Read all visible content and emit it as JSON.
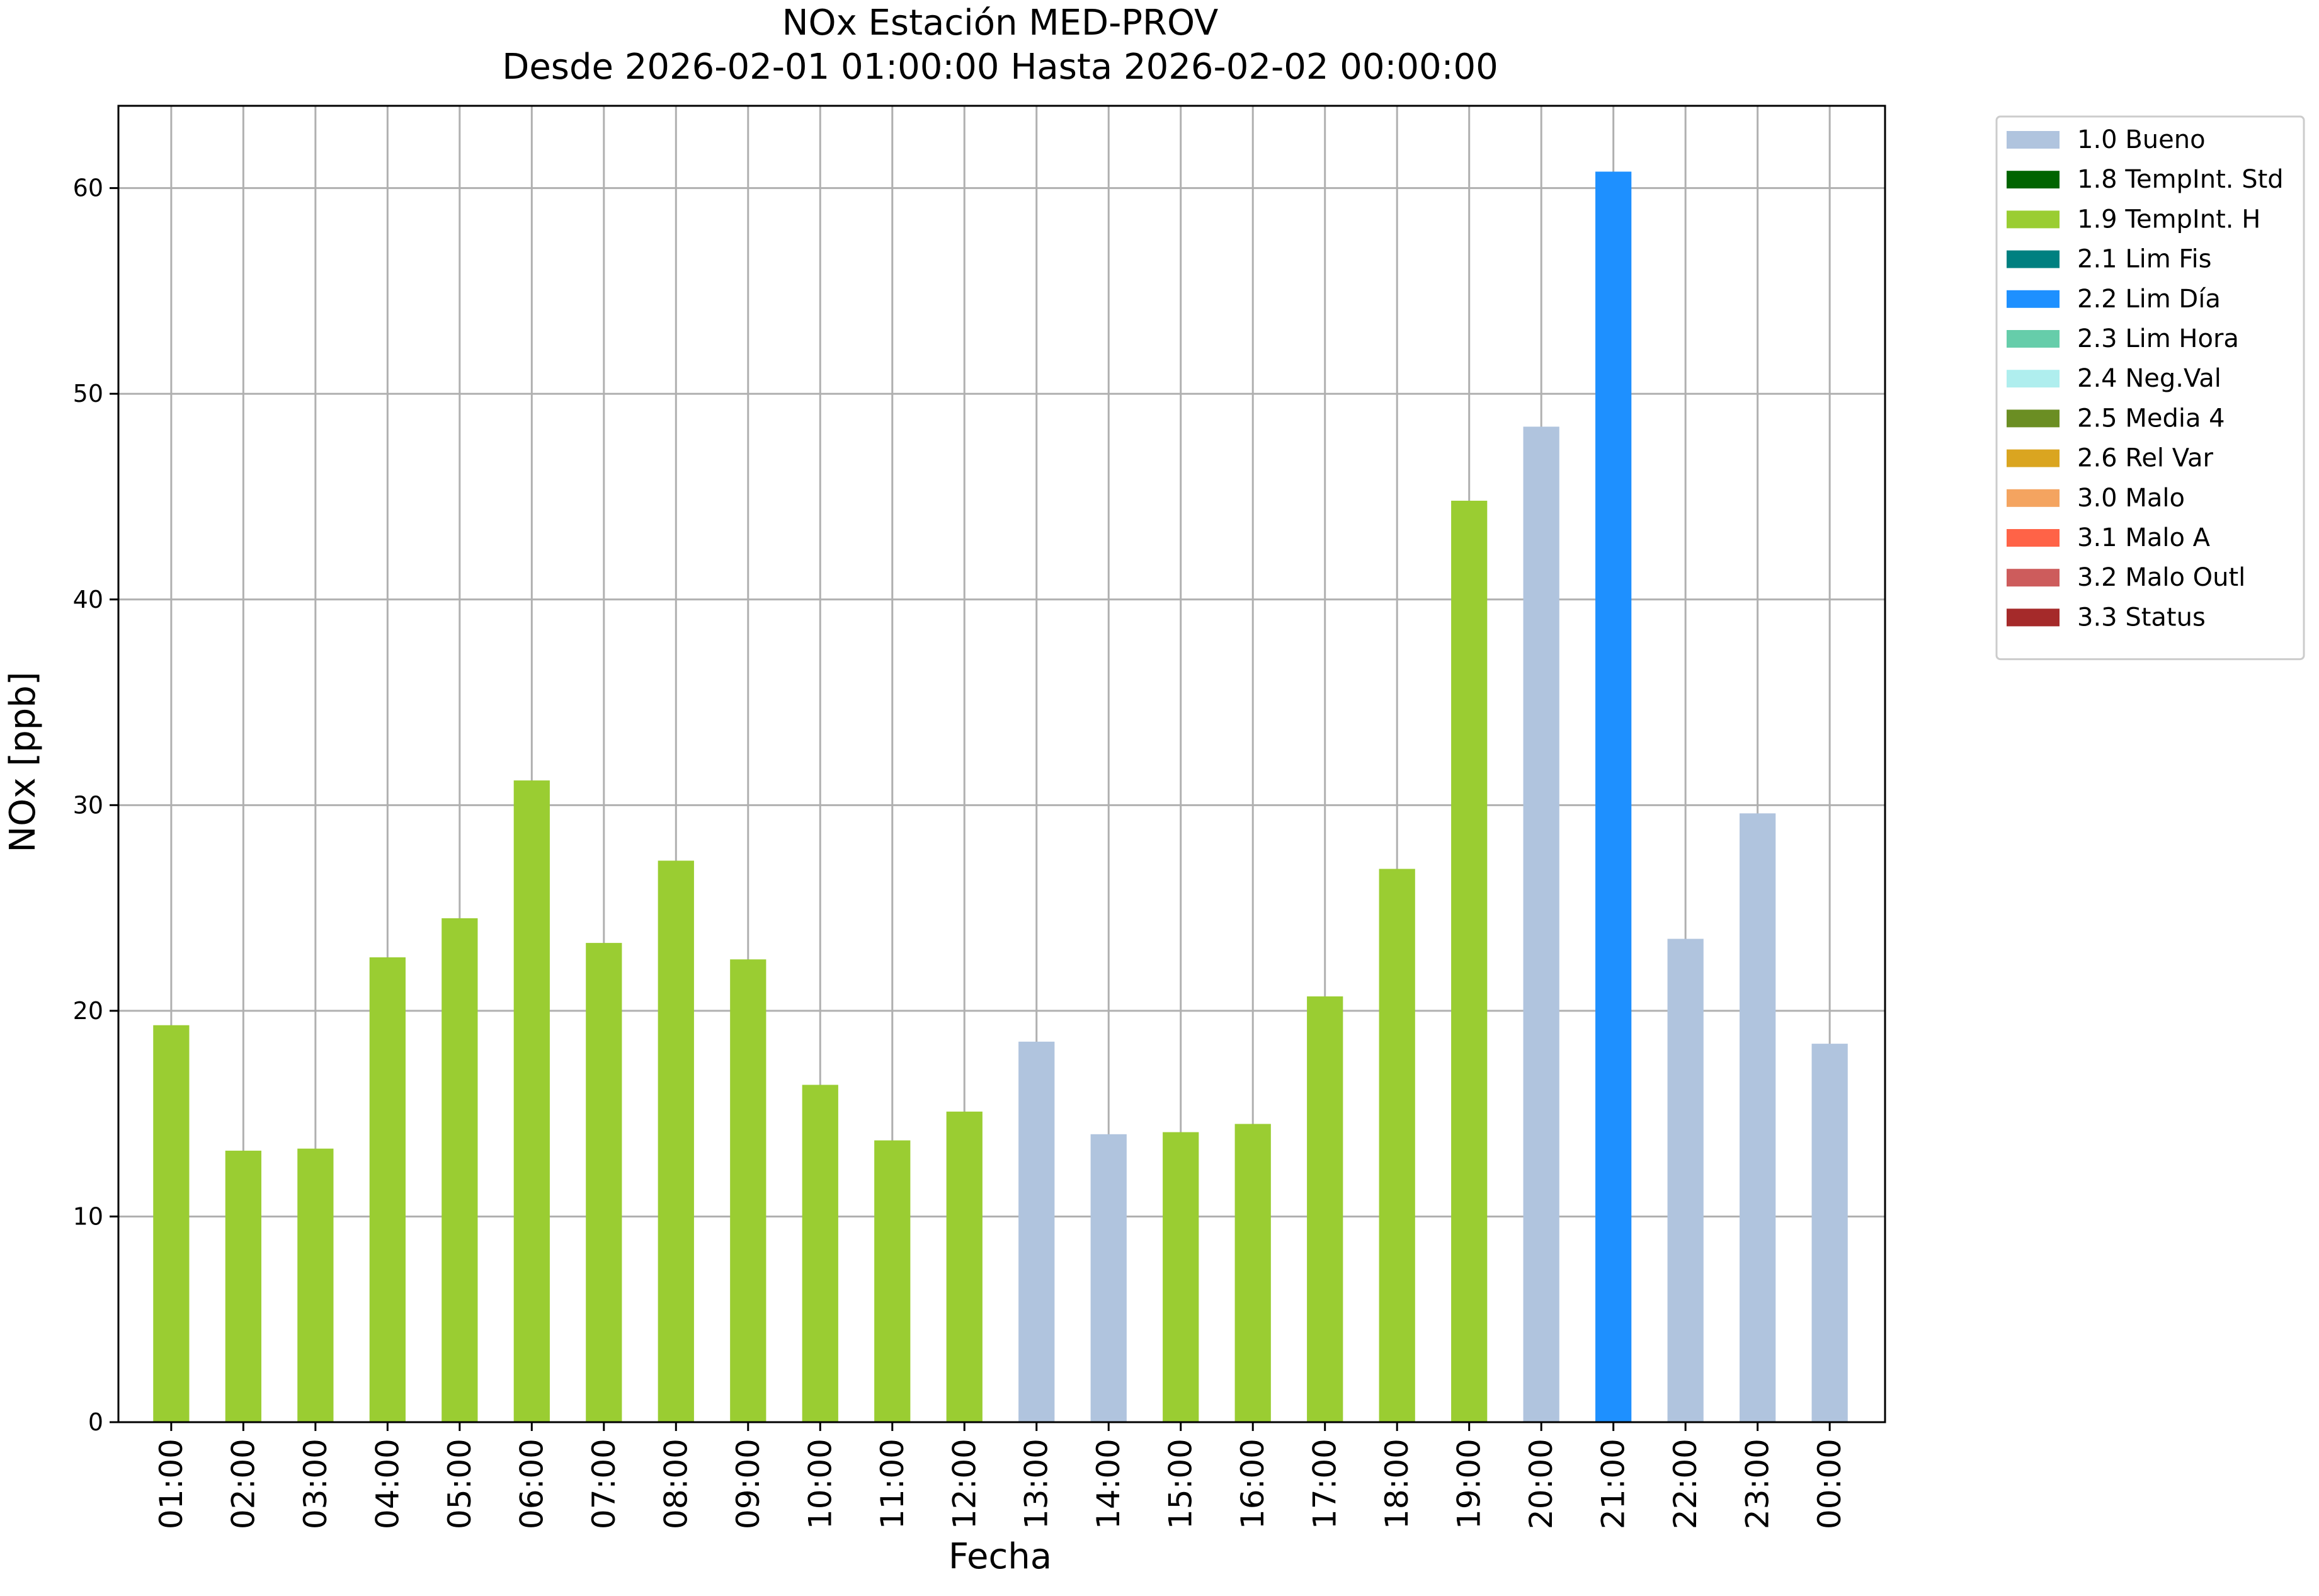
{
  "chart_data": {
    "type": "bar",
    "title": "NOx Estación MED-PROV",
    "subtitle": "Desde 2026-02-01 01:00:00 Hasta 2026-02-02 00:00:00",
    "xlabel": "Fecha",
    "ylabel": "NOx [ppb]",
    "ylim": [
      0,
      64
    ],
    "yticks": [
      0,
      10,
      20,
      30,
      40,
      50,
      60
    ],
    "grid": true,
    "legend_position": "outside-top-right",
    "categories": [
      "01:00",
      "02:00",
      "03:00",
      "04:00",
      "05:00",
      "06:00",
      "07:00",
      "08:00",
      "09:00",
      "10:00",
      "11:00",
      "12:00",
      "13:00",
      "14:00",
      "15:00",
      "16:00",
      "17:00",
      "18:00",
      "19:00",
      "20:00",
      "21:00",
      "22:00",
      "23:00",
      "00:00"
    ],
    "values": [
      19.3,
      13.2,
      13.3,
      22.6,
      24.5,
      31.2,
      23.3,
      27.3,
      22.5,
      16.4,
      13.7,
      15.1,
      18.5,
      14.0,
      14.1,
      14.5,
      20.7,
      26.9,
      44.8,
      48.4,
      60.8,
      23.5,
      29.6,
      18.4
    ],
    "flags": [
      "1.9 TempInt. H",
      "1.9 TempInt. H",
      "1.9 TempInt. H",
      "1.9 TempInt. H",
      "1.9 TempInt. H",
      "1.9 TempInt. H",
      "1.9 TempInt. H",
      "1.9 TempInt. H",
      "1.9 TempInt. H",
      "1.9 TempInt. H",
      "1.9 TempInt. H",
      "1.9 TempInt. H",
      "1.0 Bueno",
      "1.0 Bueno",
      "1.9 TempInt. H",
      "1.9 TempInt. H",
      "1.9 TempInt. H",
      "1.9 TempInt. H",
      "1.9 TempInt. H",
      "1.0 Bueno",
      "2.2 Lim Día",
      "1.0 Bueno",
      "1.0 Bueno",
      "1.0 Bueno"
    ],
    "legend": [
      {
        "label": "1.0 Bueno",
        "color": "#b0c4de"
      },
      {
        "label": "1.8 TempInt. Std",
        "color": "#006400"
      },
      {
        "label": "1.9 TempInt. H",
        "color": "#9acd32"
      },
      {
        "label": "2.1 Lim Fis",
        "color": "#008080"
      },
      {
        "label": "2.2 Lim Día",
        "color": "#1e90ff"
      },
      {
        "label": "2.3 Lim Hora",
        "color": "#66cdaa"
      },
      {
        "label": "2.4 Neg.Val",
        "color": "#afeeee"
      },
      {
        "label": "2.5 Media 4",
        "color": "#6b8e23"
      },
      {
        "label": "2.6 Rel Var",
        "color": "#daa520"
      },
      {
        "label": "3.0 Malo",
        "color": "#f4a460"
      },
      {
        "label": "3.1 Malo A",
        "color": "#ff6347"
      },
      {
        "label": "3.2 Malo Outl",
        "color": "#cd5c5c"
      },
      {
        "label": "3.3 Status",
        "color": "#a52a2a"
      }
    ]
  }
}
